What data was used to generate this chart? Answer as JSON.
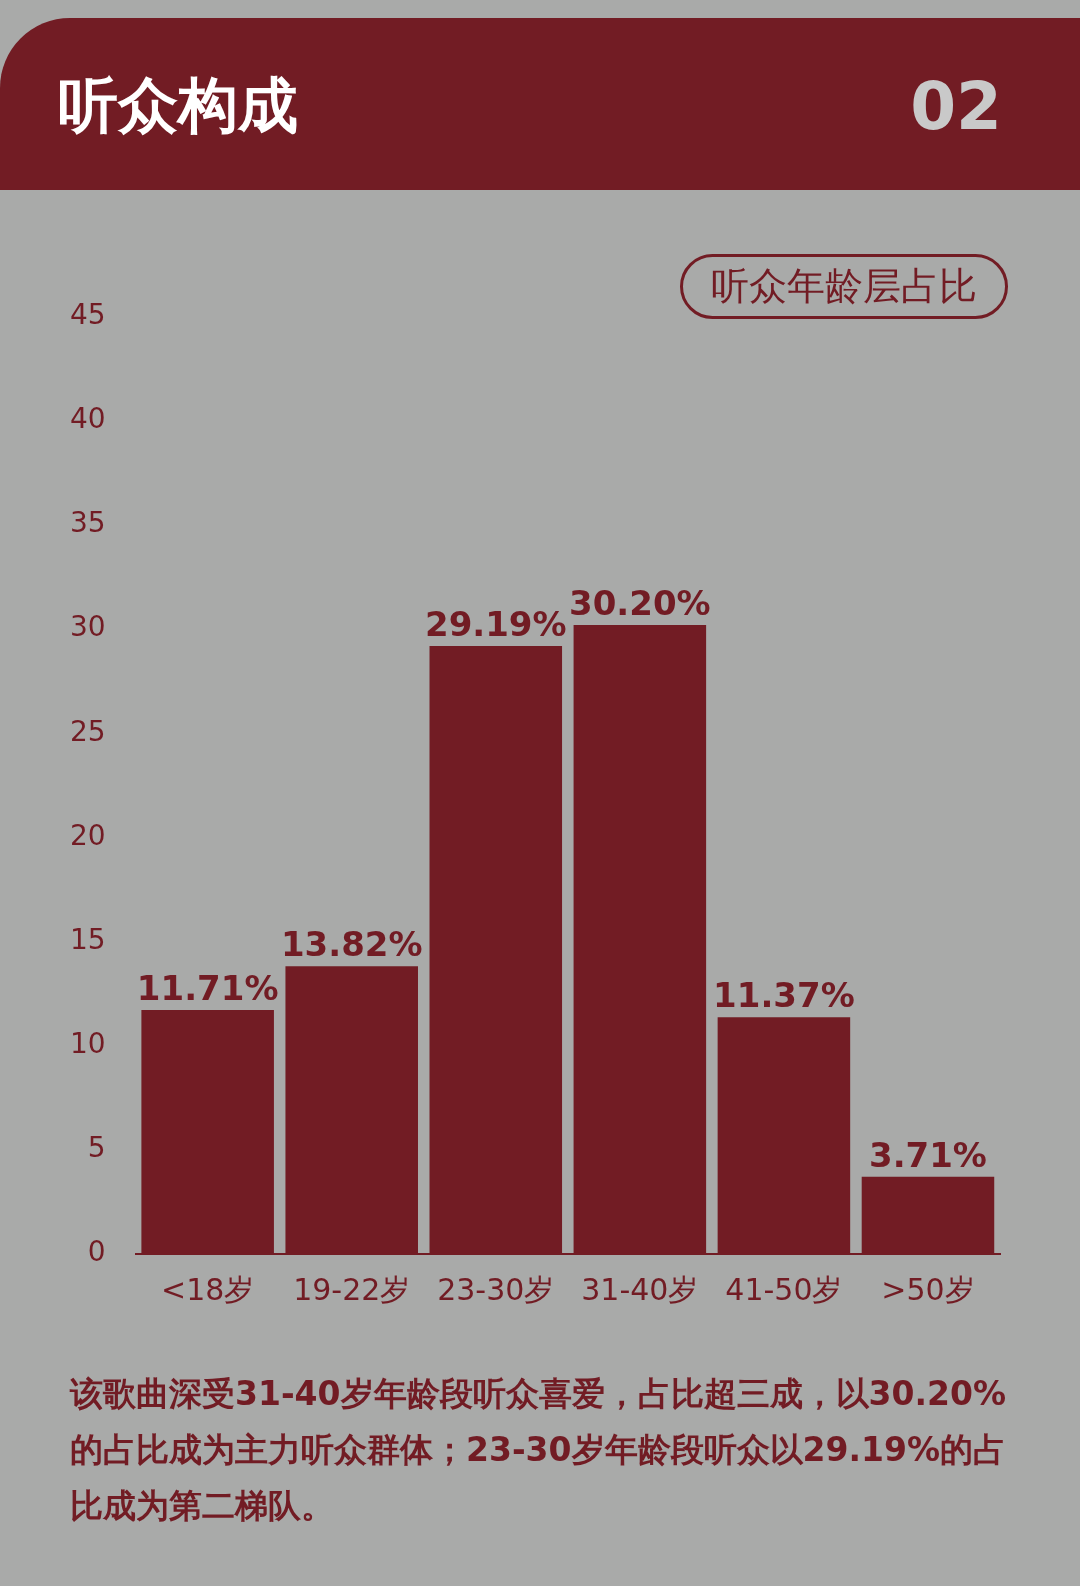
{
  "chart_data": {
    "type": "bar",
    "title": "听众构成",
    "subtitle": "听众年龄层占比",
    "categories": [
      "<18岁",
      "19-22岁",
      "23-30岁",
      "31-40岁",
      "41-50岁",
      ">50岁"
    ],
    "values": [
      11.71,
      13.82,
      29.19,
      30.2,
      11.37,
      3.71
    ],
    "value_labels": [
      "11.71%",
      "13.82%",
      "29.19%",
      "30.20%",
      "11.37%",
      "3.71%"
    ],
    "color": "#721c24",
    "ylim": [
      0,
      45
    ],
    "yticks": [
      0,
      5,
      10,
      15,
      20,
      25,
      30,
      35,
      40,
      45
    ],
    "grid": false,
    "annotations": [
      "02",
      "该歌曲深受31-40岁年龄段听众喜爱，占比超三成，以30.20%的占比成为主力听众群体；23-30岁年龄段听众以29.19%的占比成为第二梯队。"
    ]
  }
}
